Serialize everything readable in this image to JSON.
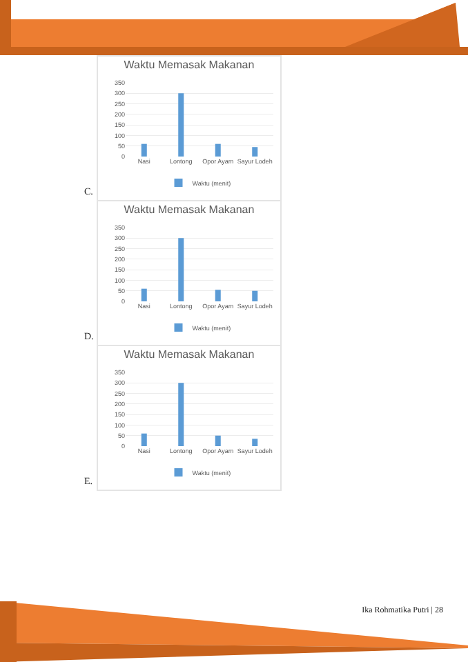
{
  "chart_data": [
    {
      "type": "bar",
      "title": "Waktu Memasak Makanan",
      "categories": [
        "Nasi",
        "Lontong",
        "Opor Ayam",
        "Sayur Lodeh"
      ],
      "series": [
        {
          "name": "Waktu (menit)",
          "color": "#5b9bd5",
          "values": [
            60,
            300,
            60,
            45
          ]
        }
      ],
      "ylim": [
        0,
        350
      ],
      "yticks": [
        0,
        50,
        100,
        150,
        200,
        250,
        300,
        350
      ],
      "grid": "y",
      "legend": "bottom",
      "annotations": [
        "C."
      ]
    },
    {
      "type": "bar",
      "title": "Waktu Memasak Makanan",
      "categories": [
        "Nasi",
        "Lontong",
        "Opor Ayam",
        "Sayur Lodeh"
      ],
      "series": [
        {
          "name": "Waktu (menit)",
          "color": "#5b9bd5",
          "values": [
            60,
            300,
            55,
            50
          ]
        }
      ],
      "ylim": [
        0,
        350
      ],
      "yticks": [
        0,
        50,
        100,
        150,
        200,
        250,
        300,
        350
      ],
      "grid": "y",
      "legend": "bottom",
      "annotations": [
        "D."
      ]
    },
    {
      "type": "bar",
      "title": "Waktu Memasak Makanan",
      "categories": [
        "Nasi",
        "Lontong",
        "Opor Ayam",
        "Sayur Lodeh"
      ],
      "series": [
        {
          "name": "Waktu (menit)",
          "color": "#5b9bd5",
          "values": [
            60,
            300,
            50,
            35
          ]
        }
      ],
      "ylim": [
        0,
        350
      ],
      "yticks": [
        0,
        50,
        100,
        150,
        200,
        250,
        300,
        350
      ],
      "grid": "y",
      "legend": "bottom",
      "annotations": [
        "E.",
        "Ika Rohmatika Putri | 28"
      ]
    }
  ]
}
